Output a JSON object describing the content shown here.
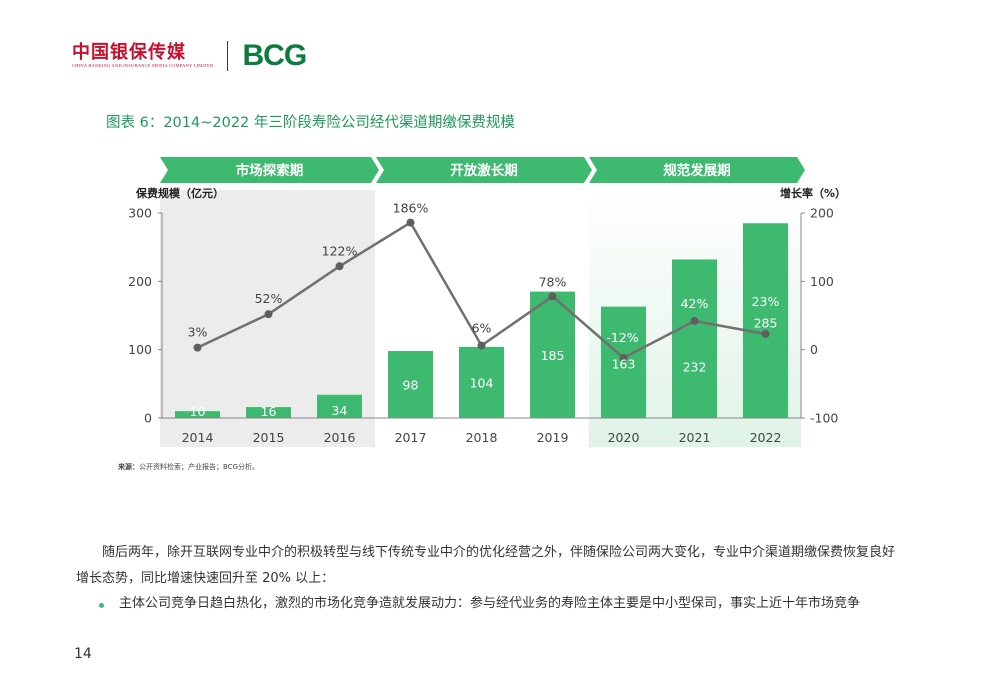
{
  "header": {
    "brand_cn": "中国银保传媒",
    "brand_en": "CHINA BANKING AND INSURANCE MEDIA COMPANY LIMITED",
    "logo": "BCG"
  },
  "figure_title": "图表 6：2014~2022 年三阶段寿险公司经代渠道期缴保费规模",
  "chart_data": {
    "type": "bar",
    "categories": [
      "2014",
      "2015",
      "2016",
      "2017",
      "2018",
      "2019",
      "2020",
      "2021",
      "2022"
    ],
    "phases": [
      {
        "label": "市场探索期",
        "categories": [
          "2014",
          "2015",
          "2016"
        ]
      },
      {
        "label": "开放激长期",
        "categories": [
          "2017",
          "2018",
          "2019"
        ]
      },
      {
        "label": "规范发展期",
        "categories": [
          "2020",
          "2021",
          "2022"
        ]
      }
    ],
    "ylabel": "保费规模（亿元）",
    "y2label": "增长率（%）",
    "ylim": [
      0,
      300
    ],
    "yticks": [
      0,
      100,
      200,
      300
    ],
    "y2lim": [
      -100,
      200
    ],
    "y2ticks": [
      -100,
      0,
      100,
      200
    ],
    "series": [
      {
        "type": "bar",
        "values": [
          10,
          16,
          34,
          98,
          104,
          185,
          163,
          232,
          285
        ],
        "labels": [
          "10",
          "16",
          "34",
          "98",
          "104",
          "185",
          "163",
          "232",
          "285"
        ]
      },
      {
        "type": "line",
        "axis": "right",
        "values": [
          3,
          52,
          122,
          186,
          6,
          78,
          -12,
          42,
          23
        ],
        "labels": [
          "3%",
          "52%",
          "122%",
          "186%",
          "6%",
          "78%",
          "-12%",
          "42%",
          "23%"
        ]
      }
    ],
    "colors": {
      "bar": "#3dba6f",
      "line": "#707070",
      "phase_header": "#3dba6f",
      "band1": "#ececec",
      "band3": "#dff3e6"
    },
    "grid": false
  },
  "source_label": "来源：",
  "source_text": "公开资料检索；产业报告；BCG分析。",
  "paragraph": "随后两年，除开互联网专业中介的积极转型与线下传统专业中介的优化经营之外，伴随保险公司两大变化，专业中介渠道期缴保费恢复良好增长态势，同比增速快速回升至 20% 以上：",
  "bullet": "主体公司竞争日趋白热化，激烈的市场化竞争造就发展动力：参与经代业务的寿险主体主要是中小型保司，事实上近十年市场竞争",
  "page_number": "14"
}
